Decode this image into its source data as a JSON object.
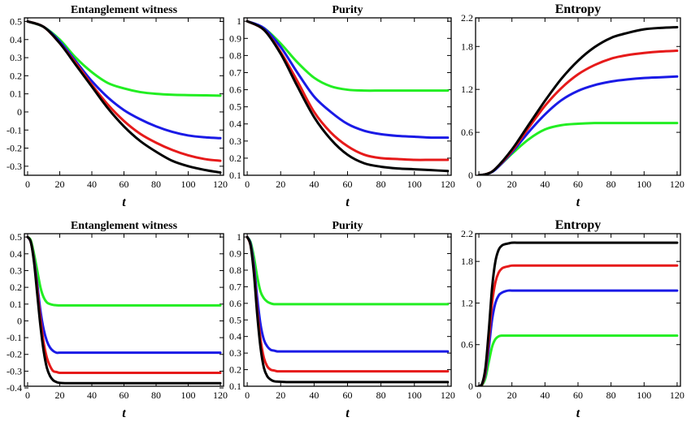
{
  "colors": {
    "green": "#22ee22",
    "blue": "#1a1ae6",
    "red": "#e61a1a",
    "black": "#000000"
  },
  "chart_data": [
    {
      "type": "line",
      "title": "Entanglement witness",
      "xlabel": "t",
      "xlim": [
        -2,
        122
      ],
      "ylim": [
        -0.35,
        0.52
      ],
      "xticks": [
        "0",
        "20",
        "40",
        "60",
        "80",
        "100",
        "120"
      ],
      "yticks": [
        0.5,
        0.4,
        0.3,
        0.2,
        0.1,
        0,
        -0.1,
        -0.2,
        -0.3
      ],
      "ytick_labels": [
        "0.5",
        "0.4",
        "0.3",
        "0.2",
        "0.1",
        "0",
        "-0.1",
        "-0.2",
        "-0.3"
      ],
      "x": [
        0,
        10,
        20,
        30,
        40,
        50,
        60,
        70,
        80,
        90,
        100,
        110,
        120
      ],
      "series": [
        {
          "color": "green",
          "values": [
            0.5,
            0.47,
            0.4,
            0.3,
            0.22,
            0.16,
            0.13,
            0.11,
            0.1,
            0.095,
            0.093,
            0.092,
            0.09
          ]
        },
        {
          "color": "blue",
          "values": [
            0.5,
            0.47,
            0.39,
            0.28,
            0.17,
            0.08,
            0.01,
            -0.04,
            -0.08,
            -0.11,
            -0.13,
            -0.14,
            -0.145
          ]
        },
        {
          "color": "red",
          "values": [
            0.5,
            0.47,
            0.38,
            0.27,
            0.15,
            0.04,
            -0.05,
            -0.12,
            -0.17,
            -0.21,
            -0.24,
            -0.26,
            -0.27
          ]
        },
        {
          "color": "black",
          "values": [
            0.5,
            0.47,
            0.38,
            0.26,
            0.14,
            0.02,
            -0.08,
            -0.16,
            -0.22,
            -0.27,
            -0.3,
            -0.32,
            -0.335
          ]
        }
      ]
    },
    {
      "type": "line",
      "title": "Purity",
      "xlabel": "t",
      "xlim": [
        -2,
        122
      ],
      "ylim": [
        0.1,
        1.02
      ],
      "xticks": [
        "0",
        "20",
        "40",
        "60",
        "80",
        "100",
        "120"
      ],
      "yticks": [
        1,
        0.9,
        0.8,
        0.7,
        0.6,
        0.5,
        0.4,
        0.3,
        0.2,
        0.1
      ],
      "ytick_labels": [
        "1",
        "0.9",
        "0.8",
        "0.7",
        "0.6",
        "0.5",
        "0.4",
        "0.3",
        "0.2",
        "0.1"
      ],
      "x": [
        0,
        10,
        20,
        30,
        40,
        50,
        60,
        70,
        80,
        90,
        100,
        110,
        120
      ],
      "series": [
        {
          "color": "green",
          "values": [
            1.0,
            0.96,
            0.87,
            0.76,
            0.67,
            0.62,
            0.6,
            0.595,
            0.595,
            0.595,
            0.595,
            0.595,
            0.595
          ]
        },
        {
          "color": "blue",
          "values": [
            1.0,
            0.96,
            0.85,
            0.7,
            0.56,
            0.47,
            0.4,
            0.36,
            0.34,
            0.33,
            0.325,
            0.32,
            0.32
          ]
        },
        {
          "color": "red",
          "values": [
            1.0,
            0.95,
            0.82,
            0.65,
            0.47,
            0.35,
            0.27,
            0.22,
            0.2,
            0.195,
            0.19,
            0.19,
            0.19
          ]
        },
        {
          "color": "black",
          "values": [
            1.0,
            0.95,
            0.81,
            0.62,
            0.44,
            0.31,
            0.22,
            0.17,
            0.15,
            0.14,
            0.135,
            0.13,
            0.125
          ]
        }
      ]
    },
    {
      "type": "line",
      "title": "Entropy",
      "xlabel": "t",
      "xlim": [
        -2,
        122
      ],
      "ylim": [
        0,
        2.2
      ],
      "xticks": [
        "0",
        "20",
        "40",
        "60",
        "80",
        "100",
        "120"
      ],
      "yticks": [
        2.2,
        1.8,
        1.2,
        0.6,
        0
      ],
      "ytick_labels": [
        "2.2",
        "1.8",
        "1.2",
        "0.6",
        "0"
      ],
      "x": [
        0,
        5,
        10,
        20,
        30,
        40,
        50,
        60,
        70,
        80,
        90,
        100,
        110,
        120
      ],
      "series": [
        {
          "color": "green",
          "values": [
            0,
            0.02,
            0.08,
            0.3,
            0.5,
            0.64,
            0.7,
            0.72,
            0.73,
            0.73,
            0.73,
            0.73,
            0.73,
            0.73
          ]
        },
        {
          "color": "blue",
          "values": [
            0,
            0.02,
            0.08,
            0.32,
            0.6,
            0.85,
            1.05,
            1.18,
            1.26,
            1.31,
            1.34,
            1.36,
            1.37,
            1.38
          ]
        },
        {
          "color": "red",
          "values": [
            0,
            0.02,
            0.09,
            0.34,
            0.66,
            0.97,
            1.22,
            1.41,
            1.54,
            1.63,
            1.68,
            1.71,
            1.73,
            1.74
          ]
        },
        {
          "color": "black",
          "values": [
            0,
            0.02,
            0.09,
            0.36,
            0.7,
            1.04,
            1.35,
            1.6,
            1.79,
            1.92,
            1.99,
            2.04,
            2.06,
            2.07
          ]
        }
      ]
    },
    {
      "type": "line",
      "title": "Entanglement witness",
      "xlabel": "t",
      "xlim": [
        -2,
        122
      ],
      "ylim": [
        -0.39,
        0.52
      ],
      "xticks": [
        "0",
        "20",
        "40",
        "60",
        "80",
        "100",
        "120"
      ],
      "yticks": [
        0.5,
        0.4,
        0.3,
        0.2,
        0.1,
        0,
        -0.1,
        -0.2,
        -0.3,
        -0.4
      ],
      "ytick_labels": [
        "0.5",
        "0.4",
        "0.3",
        "0.2",
        "0.1",
        "0",
        "-0.1",
        "-0.2",
        "-0.3",
        "-0.4"
      ],
      "x": [
        0,
        2,
        4,
        6,
        8,
        10,
        12,
        14,
        16,
        18,
        20,
        25,
        30,
        40,
        60,
        80,
        100,
        120
      ],
      "series": [
        {
          "color": "green",
          "values": [
            0.5,
            0.48,
            0.4,
            0.3,
            0.2,
            0.14,
            0.11,
            0.1,
            0.095,
            0.093,
            0.092,
            0.092,
            0.092,
            0.092,
            0.092,
            0.092,
            0.092,
            0.092
          ]
        },
        {
          "color": "blue",
          "values": [
            0.5,
            0.47,
            0.37,
            0.22,
            0.06,
            -0.05,
            -0.12,
            -0.16,
            -0.18,
            -0.19,
            -0.19,
            -0.19,
            -0.19,
            -0.19,
            -0.19,
            -0.19,
            -0.19,
            -0.19
          ]
        },
        {
          "color": "red",
          "values": [
            0.5,
            0.47,
            0.36,
            0.19,
            0.01,
            -0.13,
            -0.22,
            -0.27,
            -0.3,
            -0.305,
            -0.31,
            -0.31,
            -0.31,
            -0.31,
            -0.31,
            -0.31,
            -0.31,
            -0.31
          ]
        },
        {
          "color": "black",
          "values": [
            0.5,
            0.47,
            0.35,
            0.16,
            -0.03,
            -0.18,
            -0.28,
            -0.33,
            -0.355,
            -0.365,
            -0.37,
            -0.372,
            -0.372,
            -0.372,
            -0.372,
            -0.372,
            -0.372,
            -0.372
          ]
        }
      ]
    },
    {
      "type": "line",
      "title": "Purity",
      "xlabel": "t",
      "xlim": [
        -2,
        122
      ],
      "ylim": [
        0.1,
        1.02
      ],
      "xticks": [
        "0",
        "20",
        "40",
        "60",
        "80",
        "100",
        "120"
      ],
      "yticks": [
        1,
        0.9,
        0.8,
        0.7,
        0.6,
        0.5,
        0.4,
        0.3,
        0.2,
        0.1
      ],
      "ytick_labels": [
        "1",
        "0.9",
        "0.8",
        "0.7",
        "0.6",
        "0.5",
        "0.4",
        "0.3",
        "0.2",
        "0.1"
      ],
      "x": [
        0,
        2,
        4,
        6,
        8,
        10,
        12,
        14,
        16,
        18,
        20,
        25,
        30,
        40,
        60,
        80,
        100,
        120
      ],
      "series": [
        {
          "color": "green",
          "values": [
            1.0,
            0.97,
            0.88,
            0.76,
            0.67,
            0.63,
            0.61,
            0.6,
            0.595,
            0.595,
            0.595,
            0.595,
            0.595,
            0.595,
            0.595,
            0.595,
            0.595,
            0.595
          ]
        },
        {
          "color": "blue",
          "values": [
            1.0,
            0.96,
            0.83,
            0.63,
            0.47,
            0.38,
            0.34,
            0.32,
            0.315,
            0.31,
            0.31,
            0.31,
            0.31,
            0.31,
            0.31,
            0.31,
            0.31,
            0.31
          ]
        },
        {
          "color": "red",
          "values": [
            1.0,
            0.95,
            0.8,
            0.56,
            0.38,
            0.27,
            0.22,
            0.2,
            0.195,
            0.19,
            0.19,
            0.19,
            0.19,
            0.19,
            0.19,
            0.19,
            0.19,
            0.19
          ]
        },
        {
          "color": "black",
          "values": [
            1.0,
            0.95,
            0.78,
            0.53,
            0.33,
            0.21,
            0.16,
            0.14,
            0.13,
            0.128,
            0.127,
            0.125,
            0.125,
            0.125,
            0.125,
            0.125,
            0.125,
            0.125
          ]
        }
      ]
    },
    {
      "type": "line",
      "title": "Entropy",
      "xlabel": "t",
      "xlim": [
        -2,
        122
      ],
      "ylim": [
        0,
        2.2
      ],
      "xticks": [
        "0",
        "20",
        "40",
        "60",
        "80",
        "100",
        "120"
      ],
      "yticks": [
        2.2,
        1.8,
        1.2,
        0.6,
        0
      ],
      "ytick_labels": [
        "2.2",
        "1.8",
        "1.2",
        "0.6",
        "0"
      ],
      "x": [
        0,
        2,
        4,
        6,
        8,
        10,
        12,
        14,
        16,
        18,
        20,
        25,
        30,
        40,
        60,
        80,
        100,
        120
      ],
      "series": [
        {
          "color": "green",
          "values": [
            0,
            0.02,
            0.12,
            0.35,
            0.57,
            0.68,
            0.72,
            0.73,
            0.73,
            0.73,
            0.73,
            0.73,
            0.73,
            0.73,
            0.73,
            0.73,
            0.73,
            0.73
          ]
        },
        {
          "color": "blue",
          "values": [
            0,
            0.03,
            0.18,
            0.55,
            0.96,
            1.2,
            1.31,
            1.35,
            1.37,
            1.38,
            1.38,
            1.38,
            1.38,
            1.38,
            1.38,
            1.38,
            1.38,
            1.38
          ]
        },
        {
          "color": "red",
          "values": [
            0,
            0.03,
            0.22,
            0.68,
            1.2,
            1.5,
            1.64,
            1.7,
            1.72,
            1.73,
            1.74,
            1.74,
            1.74,
            1.74,
            1.74,
            1.74,
            1.74,
            1.74
          ]
        },
        {
          "color": "black",
          "values": [
            0,
            0.04,
            0.27,
            0.8,
            1.42,
            1.8,
            1.97,
            2.03,
            2.05,
            2.06,
            2.07,
            2.07,
            2.07,
            2.07,
            2.07,
            2.07,
            2.07,
            2.07
          ]
        }
      ]
    }
  ]
}
